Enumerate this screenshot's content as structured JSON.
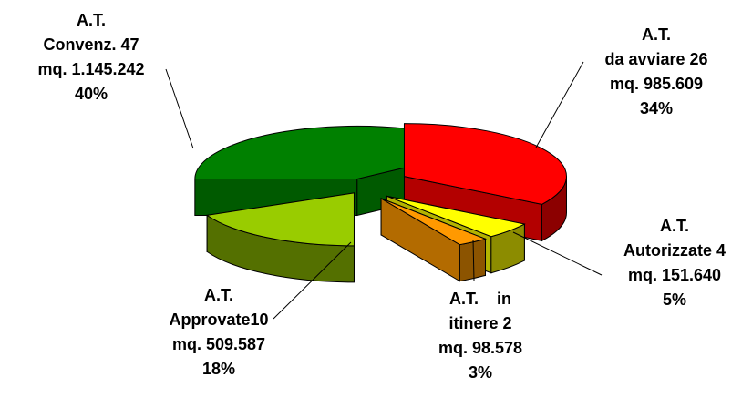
{
  "chart_data": {
    "type": "pie",
    "style": "3d-exploded",
    "slices": [
      {
        "label_lines": [
          "A.T.",
          "Convenz. 47",
          "mq. 1.145.242",
          "40%"
        ],
        "count": 47,
        "area_mq": 1145242,
        "percent": 40,
        "color": "#008000"
      },
      {
        "label_lines": [
          "A.T.",
          "da avviare 26",
          "mq. 985.609",
          "34%"
        ],
        "count": 26,
        "area_mq": 985609,
        "percent": 34,
        "color": "#ff0000"
      },
      {
        "label_lines": [
          "A.T.",
          "Autorizzate 4",
          "mq. 151.640",
          "5%"
        ],
        "count": 4,
        "area_mq": 151640,
        "percent": 5,
        "color": "#ffff00"
      },
      {
        "label_lines": [
          "A.T.    in",
          "itinere 2",
          "mq. 98.578",
          "3%"
        ],
        "count": 2,
        "area_mq": 98578,
        "percent": 3,
        "color": "#ff9900"
      },
      {
        "label_lines": [
          "A.T.",
          "Approvate10",
          "mq. 509.587",
          "18%"
        ],
        "count": 10,
        "area_mq": 509587,
        "percent": 18,
        "color": "#99cc00"
      }
    ]
  }
}
